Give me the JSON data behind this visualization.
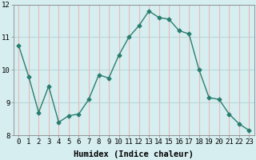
{
  "x": [
    0,
    1,
    2,
    3,
    4,
    5,
    6,
    7,
    8,
    9,
    10,
    11,
    12,
    13,
    14,
    15,
    16,
    17,
    18,
    19,
    20,
    21,
    22,
    23
  ],
  "y": [
    10.75,
    9.8,
    8.7,
    9.5,
    8.4,
    8.6,
    8.65,
    9.1,
    9.85,
    9.75,
    10.45,
    11.0,
    11.35,
    11.8,
    11.6,
    11.55,
    11.2,
    11.1,
    10.0,
    9.15,
    9.1,
    8.65,
    8.35,
    8.15
  ],
  "line_color": "#2a7d6e",
  "marker": "D",
  "marker_size": 2.5,
  "bg_color": "#d6eef0",
  "hgrid_color": "#b8d8dc",
  "vgrid_color": "#e8b8b8",
  "xlabel": "Humidex (Indice chaleur)",
  "ylim": [
    8,
    12
  ],
  "xlim": [
    -0.5,
    23.5
  ],
  "yticks": [
    8,
    9,
    10,
    11,
    12
  ],
  "xticks": [
    0,
    1,
    2,
    3,
    4,
    5,
    6,
    7,
    8,
    9,
    10,
    11,
    12,
    13,
    14,
    15,
    16,
    17,
    18,
    19,
    20,
    21,
    22,
    23
  ],
  "tick_fontsize": 6.5,
  "xlabel_fontsize": 7.5,
  "linewidth": 1.0
}
